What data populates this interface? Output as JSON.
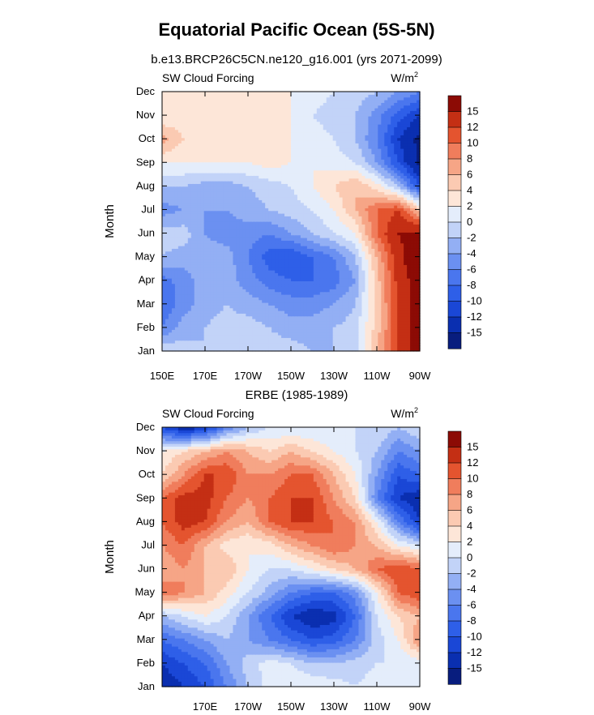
{
  "title": "Equatorial Pacific Ocean (5S-5N)",
  "chart_data": [
    {
      "type": "heatmap",
      "subtitle": "b.e13.BRCP26C5CN.ne120_g16.001 (yrs 2071-2099)",
      "left_label": "SW Cloud Forcing",
      "units": "W/m",
      "units_sup": "2",
      "ylabel": "Month",
      "months": [
        "Jan",
        "Feb",
        "Mar",
        "Apr",
        "May",
        "Jun",
        "Jul",
        "Aug",
        "Sep",
        "Oct",
        "Nov",
        "Dec"
      ],
      "xticks": [
        "150E",
        "170E",
        "170W",
        "150W",
        "130W",
        "110W",
        "90W"
      ],
      "lon": [
        150,
        160,
        170,
        180,
        190,
        200,
        210,
        220,
        230,
        240,
        250,
        260,
        270
      ],
      "z": [
        [
          0,
          -1,
          -2,
          -2,
          -1,
          -1,
          -1,
          -2,
          -2,
          -1,
          6,
          12,
          17
        ],
        [
          -6,
          -3,
          -2,
          -1,
          -1,
          -2,
          -3,
          -3,
          -2,
          -1,
          5,
          12,
          17
        ],
        [
          -8,
          -5,
          -3,
          -2,
          -3,
          -4,
          -5,
          -5,
          -4,
          -2,
          5,
          12,
          17
        ],
        [
          -7,
          -5,
          -3,
          -3,
          -5,
          -7,
          -8,
          -8,
          -7,
          -4,
          5,
          13,
          17
        ],
        [
          -2,
          -3,
          -3,
          -3,
          -6,
          -9,
          -10,
          -8,
          -6,
          -2,
          6,
          14,
          18
        ],
        [
          -1,
          -1,
          -4,
          -5,
          -5,
          -6,
          -4,
          -2,
          0,
          2,
          10,
          15,
          16
        ],
        [
          -5,
          -4,
          -4,
          -4,
          -3,
          -2,
          -1,
          0,
          2,
          6,
          10,
          12,
          5
        ],
        [
          -2,
          -2,
          -3,
          -3,
          -2,
          -1,
          0,
          2,
          4,
          6,
          3,
          -2,
          -10
        ],
        [
          2,
          2,
          2,
          2,
          2,
          3,
          2,
          2,
          1,
          0,
          -4,
          -10,
          -16
        ],
        [
          7,
          4,
          3,
          3,
          4,
          4,
          2,
          1,
          0,
          -2,
          -6,
          -12,
          -16
        ],
        [
          2,
          3,
          3,
          4,
          4,
          3,
          2,
          0,
          -1,
          -2,
          -5,
          -9,
          -12
        ],
        [
          2,
          2,
          2,
          3,
          3,
          2,
          2,
          1,
          0,
          -1,
          -2,
          -4,
          -6
        ]
      ]
    },
    {
      "type": "heatmap",
      "subtitle": "ERBE (1985-1989)",
      "left_label": "SW Cloud Forcing",
      "units": "W/m",
      "units_sup": "2",
      "ylabel": "Month",
      "months": [
        "Jan",
        "Feb",
        "Mar",
        "Apr",
        "May",
        "Jun",
        "Jul",
        "Aug",
        "Sep",
        "Oct",
        "Nov",
        "Dec"
      ],
      "xticks": [
        "170E",
        "170W",
        "150W",
        "130W",
        "110W",
        "90W"
      ],
      "lon": [
        150,
        160,
        170,
        180,
        190,
        200,
        210,
        220,
        230,
        240,
        250,
        260,
        270
      ],
      "z": [
        [
          -14,
          -12,
          -10,
          -6,
          -2,
          1,
          2,
          2,
          1,
          0,
          1,
          1,
          1
        ],
        [
          -12,
          -10,
          -8,
          -4,
          -1,
          1,
          0,
          -2,
          -2,
          -1,
          0,
          0,
          1
        ],
        [
          -8,
          -6,
          -4,
          -2,
          -4,
          -6,
          -8,
          -10,
          -9,
          -6,
          -1,
          2,
          8
        ],
        [
          -2,
          0,
          2,
          0,
          -4,
          -8,
          -12,
          -14,
          -13,
          -8,
          0,
          4,
          6
        ],
        [
          10,
          8,
          6,
          3,
          0,
          -3,
          -6,
          -8,
          -8,
          -5,
          2,
          10,
          12
        ],
        [
          6,
          8,
          6,
          6,
          2,
          0,
          0,
          2,
          4,
          6,
          10,
          12,
          10
        ],
        [
          8,
          10,
          6,
          3,
          2,
          3,
          6,
          8,
          10,
          8,
          6,
          2,
          0
        ],
        [
          10,
          13,
          12,
          8,
          6,
          10,
          12,
          12,
          10,
          8,
          2,
          -6,
          -12
        ],
        [
          10,
          13,
          13,
          10,
          8,
          10,
          12,
          12,
          8,
          4,
          -6,
          -12,
          -14
        ],
        [
          4,
          8,
          12,
          12,
          8,
          8,
          10,
          10,
          6,
          2,
          -4,
          -10,
          -8
        ],
        [
          2,
          4,
          6,
          8,
          6,
          4,
          6,
          4,
          2,
          0,
          -2,
          -6,
          -4
        ],
        [
          -10,
          -14,
          -12,
          -6,
          -2,
          0,
          0,
          0,
          0,
          0,
          0,
          -2,
          0
        ]
      ]
    }
  ],
  "colorbar": {
    "levels": [
      -15,
      -12,
      -10,
      -8,
      -6,
      -4,
      -2,
      0,
      2,
      4,
      6,
      8,
      10,
      12,
      15
    ],
    "labels": [
      "15",
      "12",
      "10",
      "8",
      "6",
      "4",
      "2",
      "0",
      "-2",
      "-4",
      "-6",
      "-8",
      "-10",
      "-12",
      "-15"
    ],
    "colors": [
      "#081d7e",
      "#0a2fb0",
      "#1a47d6",
      "#2e5fe8",
      "#4a76ee",
      "#6b90f1",
      "#93aff4",
      "#c2d3f8",
      "#e4edfb",
      "#fde6d8",
      "#fbcab2",
      "#f6a586",
      "#f07d5c",
      "#e4542f",
      "#c42f14",
      "#8c0b05"
    ]
  }
}
